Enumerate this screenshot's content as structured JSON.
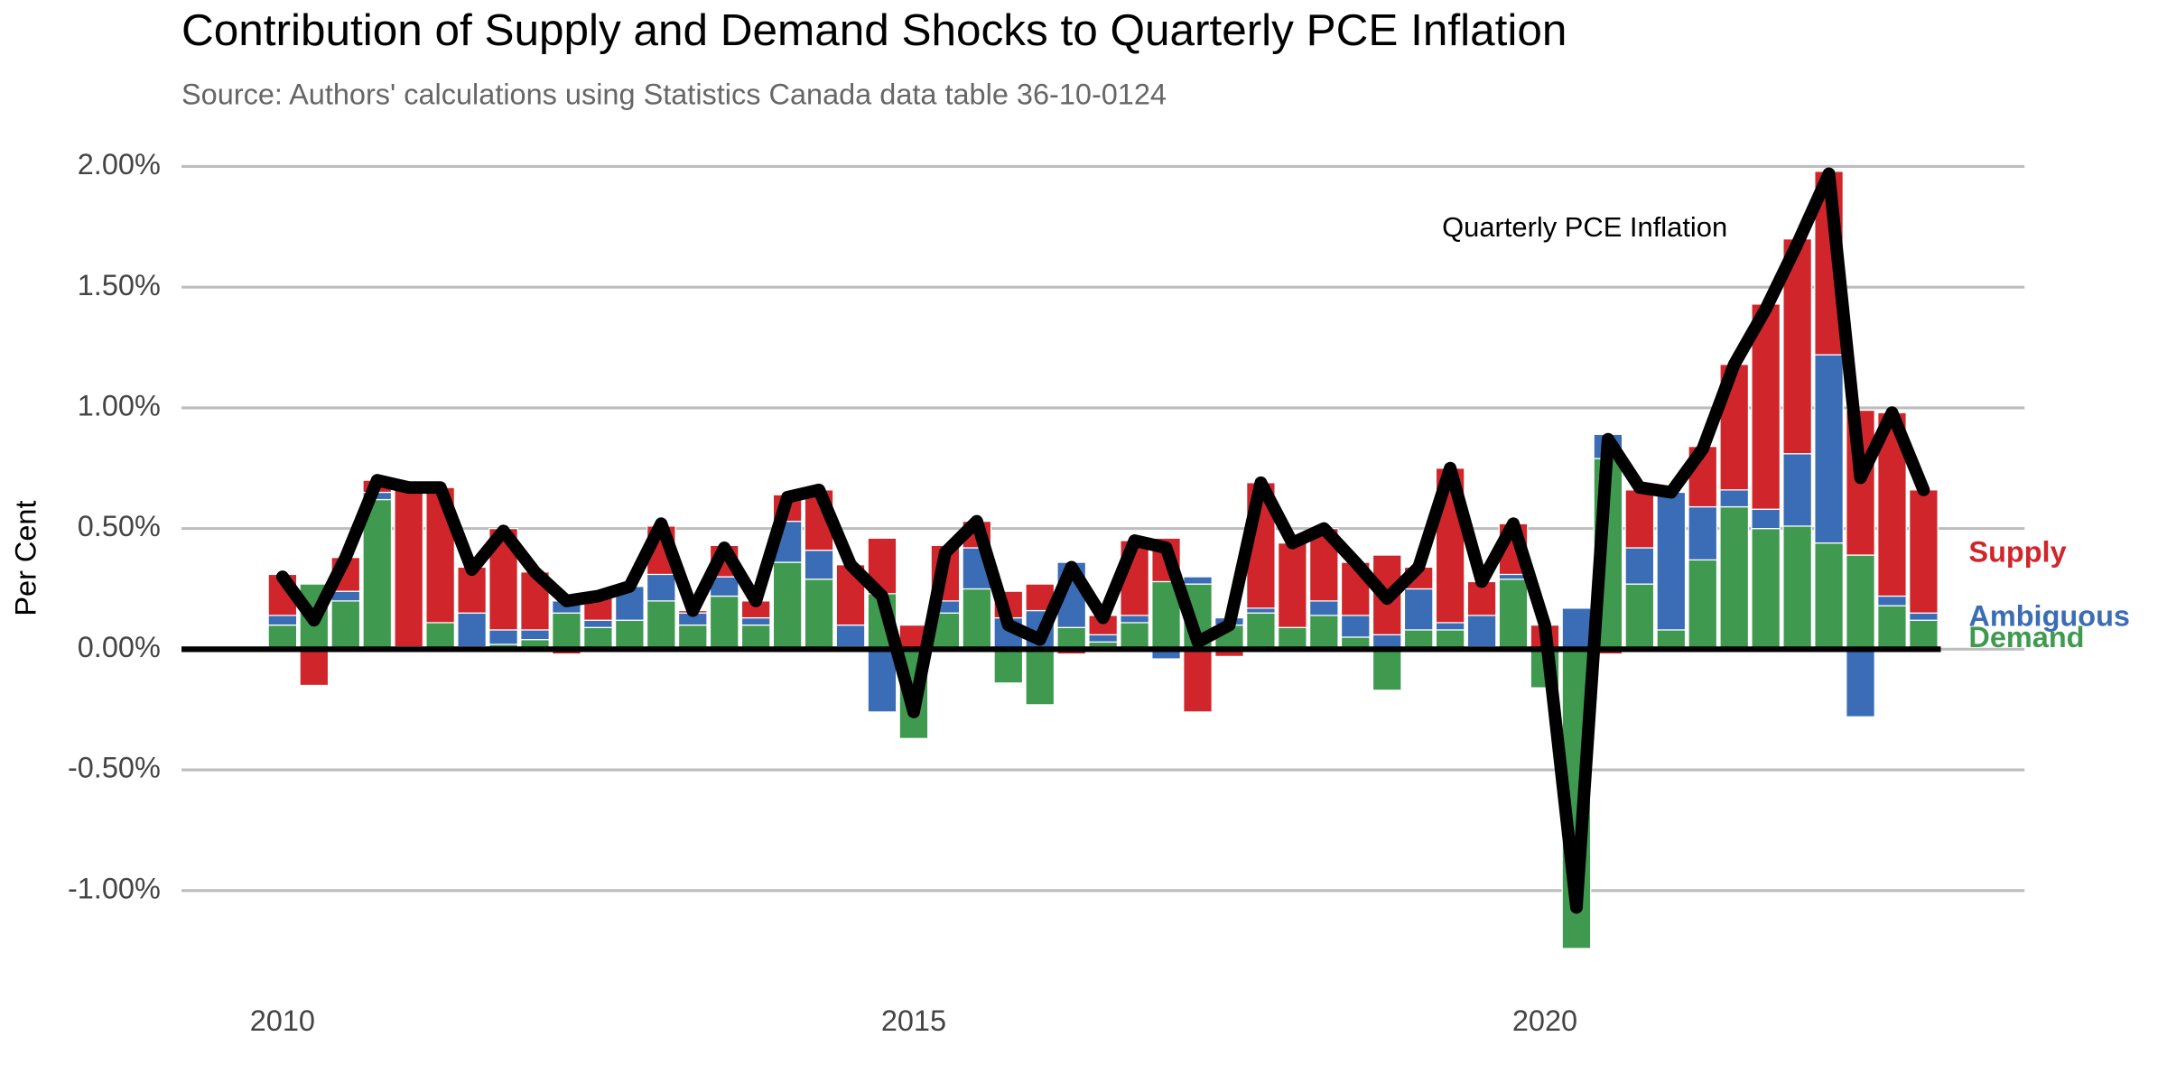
{
  "chart_data": {
    "type": "bar",
    "stacked": true,
    "title": "Contribution of Supply and Demand Shocks to Quarterly PCE Inflation",
    "subtitle": "Source: Authors' calculations using Statistics Canada data table 36-10-0124",
    "y_label": "Per Cent",
    "x": [
      2010,
      2010.25,
      2010.5,
      2010.75,
      2011,
      2011.25,
      2011.5,
      2011.75,
      2012,
      2012.25,
      2012.5,
      2012.75,
      2013,
      2013.25,
      2013.5,
      2013.75,
      2014,
      2014.25,
      2014.5,
      2014.75,
      2015,
      2015.25,
      2015.5,
      2015.75,
      2016,
      2016.25,
      2016.5,
      2016.75,
      2017,
      2017.25,
      2017.5,
      2017.75,
      2018,
      2018.25,
      2018.5,
      2018.75,
      2019,
      2019.25,
      2019.5,
      2019.75,
      2020,
      2020.25,
      2020.5,
      2020.75,
      2021,
      2021.25,
      2021.5,
      2021.75,
      2022,
      2022.25,
      2022.5,
      2022.75,
      2023
    ],
    "series": [
      {
        "name": "Demand",
        "color": "#3f9a50",
        "values": [
          0.1,
          0.27,
          0.2,
          0.62,
          0.01,
          0.11,
          0.01,
          0.02,
          0.04,
          0.15,
          0.09,
          0.12,
          0.2,
          0.1,
          0.22,
          0.1,
          0.36,
          0.29,
          0.01,
          0.23,
          -0.37,
          0.15,
          0.25,
          -0.14,
          -0.23,
          0.09,
          0.03,
          0.11,
          0.28,
          0.27,
          0.1,
          0.15,
          0.09,
          0.14,
          0.05,
          -0.17,
          0.08,
          0.08,
          0.01,
          0.29,
          -0.16,
          -1.24,
          0.79,
          0.27,
          0.08,
          0.37,
          0.59,
          0.5,
          0.51,
          0.44,
          0.39,
          0.18,
          0.12
        ]
      },
      {
        "name": "Ambiguous",
        "color": "#3a6db5",
        "values": [
          0.04,
          0,
          0.04,
          0.03,
          0,
          0,
          0.14,
          0.06,
          0.04,
          0.05,
          0.03,
          0.14,
          0.11,
          0.05,
          0.08,
          0.03,
          0.17,
          0.12,
          0.09,
          -0.26,
          0,
          0.05,
          0.17,
          0.13,
          0.16,
          0.27,
          0.03,
          0.03,
          -0.04,
          0.03,
          0.03,
          0.02,
          0,
          0.06,
          0.09,
          0.06,
          0.17,
          0.03,
          0.13,
          0.02,
          0,
          0.17,
          0.1,
          0.15,
          0.57,
          0.22,
          0.07,
          0.08,
          0.3,
          0.78,
          -0.28,
          0.04,
          0.03
        ]
      },
      {
        "name": "Supply",
        "color": "#d0262b",
        "values": [
          0.17,
          -0.15,
          0.14,
          0.05,
          0.66,
          0.56,
          0.19,
          0.42,
          0.24,
          -0.02,
          0.1,
          0,
          0.2,
          0.01,
          0.13,
          0.07,
          0.11,
          0.25,
          0.25,
          0.23,
          0.1,
          0.23,
          0.11,
          0.11,
          0.11,
          -0.02,
          0.08,
          0.31,
          0.18,
          -0.26,
          -0.03,
          0.52,
          0.35,
          0.3,
          0.22,
          0.33,
          0.09,
          0.64,
          0.14,
          0.21,
          0.1,
          0,
          -0.02,
          0.24,
          0,
          0.25,
          0.52,
          0.85,
          0.89,
          0.76,
          0.6,
          0.76,
          0.51
        ]
      }
    ],
    "line": {
      "name": "Quarterly PCE Inflation",
      "color": "#000000",
      "values": [
        0.3,
        0.12,
        0.38,
        0.7,
        0.67,
        0.67,
        0.33,
        0.49,
        0.32,
        0.2,
        0.22,
        0.26,
        0.52,
        0.16,
        0.42,
        0.2,
        0.63,
        0.66,
        0.35,
        0.22,
        -0.26,
        0.4,
        0.53,
        0.1,
        0.04,
        0.34,
        0.13,
        0.45,
        0.42,
        0.03,
        0.1,
        0.69,
        0.44,
        0.5,
        0.36,
        0.21,
        0.34,
        0.75,
        0.28,
        0.52,
        0.1,
        -1.07,
        0.87,
        0.67,
        0.65,
        0.83,
        1.18,
        1.41,
        1.68,
        1.97,
        0.71,
        0.98,
        0.66
      ]
    },
    "xlim": [
      2009.2,
      2023.8
    ],
    "xticks": [
      2010,
      2015,
      2020
    ],
    "ylim": [
      -1.3,
      2.1
    ],
    "yticks": [
      {
        "value": -1,
        "label": "-1.00%"
      },
      {
        "value": -0.5,
        "label": "-0.50%"
      },
      {
        "value": 0,
        "label": "0.00%"
      },
      {
        "value": 0.5,
        "label": "0.50%"
      },
      {
        "value": 1,
        "label": "1.00%"
      },
      {
        "value": 1.5,
        "label": "1.50%"
      },
      {
        "value": 2,
        "label": "2.00%"
      }
    ],
    "grid": true
  }
}
